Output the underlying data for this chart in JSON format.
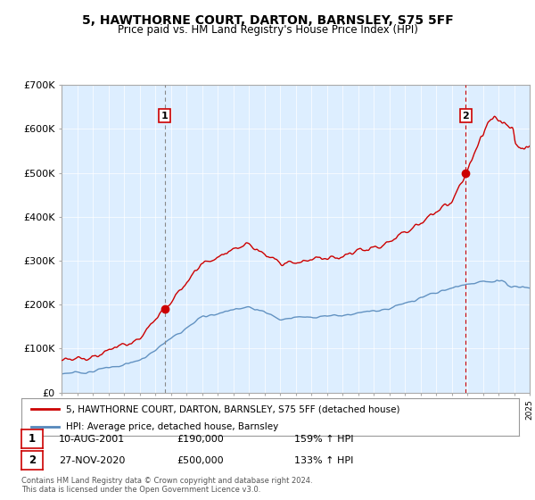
{
  "title": "5, HAWTHORNE COURT, DARTON, BARNSLEY, S75 5FF",
  "subtitle": "Price paid vs. HM Land Registry's House Price Index (HPI)",
  "legend_label_red": "5, HAWTHORNE COURT, DARTON, BARNSLEY, S75 5FF (detached house)",
  "legend_label_blue": "HPI: Average price, detached house, Barnsley",
  "sale1_date": "10-AUG-2001",
  "sale1_price": "£190,000",
  "sale1_hpi": "159% ↑ HPI",
  "sale2_date": "27-NOV-2020",
  "sale2_price": "£500,000",
  "sale2_hpi": "133% ↑ HPI",
  "footer": "Contains HM Land Registry data © Crown copyright and database right 2024.\nThis data is licensed under the Open Government Licence v3.0.",
  "red_color": "#cc0000",
  "blue_color": "#5588bb",
  "plot_bg_color": "#ddeeff",
  "ylim": [
    0,
    700000
  ],
  "yticks": [
    0,
    100000,
    200000,
    300000,
    400000,
    500000,
    600000,
    700000
  ],
  "ytick_labels": [
    "£0",
    "£100K",
    "£200K",
    "£300K",
    "£400K",
    "£500K",
    "£600K",
    "£700K"
  ],
  "sale1_year": 2001.6,
  "sale1_value": 190000,
  "sale2_year": 2020.9,
  "sale2_value": 500000,
  "grid_color": "#ffffff"
}
